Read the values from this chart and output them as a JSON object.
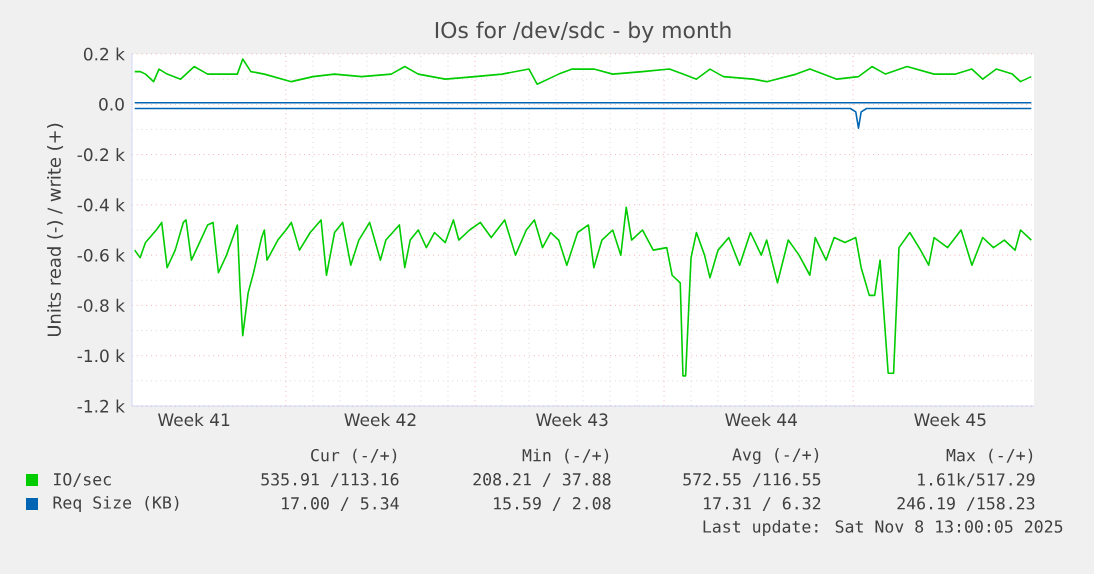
{
  "chart_data": {
    "type": "line",
    "title": "IOs for /dev/sdc - by month",
    "ylabel": "Units read (-) / write (+)",
    "xlim": [
      "2025-10-07T07:12",
      "2025-11-09T16:48"
    ],
    "ylim": [
      -1200,
      200
    ],
    "xticks": [
      {
        "value": "2025-10-09T14:24",
        "label": "Week 41"
      },
      {
        "value": "2025-10-13",
        "label": null
      },
      {
        "value": "2025-10-16T12:00",
        "label": "Week 42"
      },
      {
        "value": "2025-10-20",
        "label": null
      },
      {
        "value": "2025-10-23T14:24",
        "label": "Week 43"
      },
      {
        "value": "2025-10-27",
        "label": null
      },
      {
        "value": "2025-10-30T14:24",
        "label": "Week 44"
      },
      {
        "value": "2025-11-03",
        "label": null
      },
      {
        "value": "2025-11-06T14:24",
        "label": "Week 45"
      }
    ],
    "yticks": [
      {
        "value": 200,
        "label": "0.2 k"
      },
      {
        "value": 0,
        "label": "0.0"
      },
      {
        "value": -200,
        "label": "-0.2 k"
      },
      {
        "value": -400,
        "label": "-0.4 k"
      },
      {
        "value": -600,
        "label": "-0.6 k"
      },
      {
        "value": -800,
        "label": "-0.8 k"
      },
      {
        "value": -1000,
        "label": "-1.0 k"
      },
      {
        "value": -1200,
        "label": "-1.2 k"
      }
    ],
    "grid": true,
    "legend": "bottom",
    "series": [
      {
        "name": "IO/sec",
        "color": "#00cc00",
        "x": [
          "2025-10-07T09:36",
          "2025-10-07T14:24",
          "2025-10-07T19:12",
          "2025-10-08T02:24",
          "2025-10-08T07:12",
          "2025-10-08T14:24",
          "2025-10-09T02:24",
          "2025-10-09T14:24",
          "2025-10-10T02:24",
          "2025-10-10T14:24",
          "2025-10-11T04:48",
          "2025-10-11T09:36",
          "2025-10-11T16:48",
          "2025-10-12T04:48",
          "2025-10-13T04:48",
          "2025-10-14T00:00",
          "2025-10-14T19:12",
          "2025-10-15T19:12",
          "2025-10-16T21:36",
          "2025-10-17T09:36",
          "2025-10-17T21:36",
          "2025-10-18T21:36",
          "2025-10-20T00:00",
          "2025-10-21T00:00",
          "2025-10-22T00:00",
          "2025-10-22T07:12",
          "2025-10-23T02:24",
          "2025-10-23T14:24",
          "2025-10-24T09:36",
          "2025-10-25T02:24",
          "2025-10-26T04:48",
          "2025-10-27T04:48",
          "2025-10-27T16:48",
          "2025-10-28T04:48",
          "2025-10-28T16:48",
          "2025-10-29T04:48",
          "2025-10-30T07:12",
          "2025-10-30T19:12",
          "2025-10-31T21:36",
          "2025-11-01T09:36",
          "2025-11-02T09:36",
          "2025-11-03T04:48",
          "2025-11-03T16:48",
          "2025-11-04T04:48",
          "2025-11-05T00:00",
          "2025-11-06T00:00",
          "2025-11-06T19:12",
          "2025-11-07T09:36",
          "2025-11-07T19:12",
          "2025-11-08T07:12",
          "2025-11-08T21:36",
          "2025-11-09T04:48",
          "2025-11-09T14:24"
        ],
        "values": [
          130,
          130,
          120,
          90,
          140,
          120,
          100,
          150,
          120,
          120,
          120,
          180,
          130,
          120,
          90,
          110,
          120,
          110,
          120,
          150,
          120,
          100,
          110,
          120,
          140,
          80,
          120,
          140,
          140,
          120,
          130,
          140,
          120,
          100,
          140,
          110,
          100,
          90,
          120,
          140,
          100,
          110,
          150,
          120,
          150,
          120,
          120,
          140,
          100,
          140,
          120,
          90,
          110
        ]
      },
      {
        "color": "#00cc00",
        "x": [
          "2025-10-07T09:36",
          "2025-10-07T14:24",
          "2025-10-07T19:12",
          "2025-10-08T04:48",
          "2025-10-08T09:36",
          "2025-10-08T14:24",
          "2025-10-08T21:36",
          "2025-10-09T04:48",
          "2025-10-09T07:12",
          "2025-10-09T12:00",
          "2025-10-09T19:12",
          "2025-10-10T02:24",
          "2025-10-10T07:12",
          "2025-10-10T12:00",
          "2025-10-10T19:12",
          "2025-10-11T04:48",
          "2025-10-11T07:12",
          "2025-10-11T09:36",
          "2025-10-11T14:24",
          "2025-10-11T19:12",
          "2025-10-12T02:24",
          "2025-10-12T04:48",
          "2025-10-12T07:12",
          "2025-10-12T16:48",
          "2025-10-13T00:00",
          "2025-10-13T04:48",
          "2025-10-13T12:00",
          "2025-10-13T21:36",
          "2025-10-14T07:12",
          "2025-10-14T12:00",
          "2025-10-14T19:12",
          "2025-10-15T02:24",
          "2025-10-15T09:36",
          "2025-10-15T16:48",
          "2025-10-16T02:24",
          "2025-10-16T12:00",
          "2025-10-16T16:48",
          "2025-10-17T04:48",
          "2025-10-17T09:36",
          "2025-10-17T14:24",
          "2025-10-17T21:36",
          "2025-10-18T04:48",
          "2025-10-18T12:00",
          "2025-10-18T21:36",
          "2025-10-19T04:48",
          "2025-10-19T09:36",
          "2025-10-19T19:12",
          "2025-10-20T04:48",
          "2025-10-20T14:24",
          "2025-10-21T02:24",
          "2025-10-21T12:00",
          "2025-10-21T21:36",
          "2025-10-22T04:48",
          "2025-10-22T12:00",
          "2025-10-22T19:12",
          "2025-10-23T02:24",
          "2025-10-23T09:36",
          "2025-10-23T19:12",
          "2025-10-24T04:48",
          "2025-10-24T09:36",
          "2025-10-24T16:48",
          "2025-10-25T02:24",
          "2025-10-25T09:36",
          "2025-10-25T14:24",
          "2025-10-25T19:12",
          "2025-10-26T04:48",
          "2025-10-26T14:24",
          "2025-10-27T02:24",
          "2025-10-27T07:12",
          "2025-10-27T14:24",
          "2025-10-27T16:48",
          "2025-10-27T19:12",
          "2025-10-28T00:00",
          "2025-10-28T04:48",
          "2025-10-28T12:00",
          "2025-10-28T16:48",
          "2025-10-29T00:00",
          "2025-10-29T09:36",
          "2025-10-29T19:12",
          "2025-10-30T04:48",
          "2025-10-30T14:24",
          "2025-10-30T19:12",
          "2025-10-31T04:48",
          "2025-10-31T14:24",
          "2025-11-01T00:00",
          "2025-11-01T09:36",
          "2025-11-01T14:24",
          "2025-11-02T00:00",
          "2025-11-02T07:12",
          "2025-11-02T16:48",
          "2025-11-03T02:24",
          "2025-11-03T07:12",
          "2025-11-03T14:24",
          "2025-11-03T19:12",
          "2025-11-04T00:00",
          "2025-11-04T07:12",
          "2025-11-04T12:00",
          "2025-11-04T16:48",
          "2025-11-05T02:24",
          "2025-11-05T12:00",
          "2025-11-05T19:12",
          "2025-11-06T00:00",
          "2025-11-06T12:00",
          "2025-11-07T00:00",
          "2025-11-07T09:36",
          "2025-11-07T19:12",
          "2025-11-08T04:48",
          "2025-11-08T14:24",
          "2025-11-09T00:00",
          "2025-11-09T04:48",
          "2025-11-09T14:24"
        ],
        "values": [
          -580,
          -610,
          -550,
          -500,
          -470,
          -650,
          -580,
          -470,
          -460,
          -620,
          -550,
          -480,
          -470,
          -670,
          -600,
          -480,
          -730,
          -920,
          -750,
          -670,
          -530,
          -500,
          -620,
          -540,
          -500,
          -470,
          -580,
          -510,
          -460,
          -680,
          -510,
          -470,
          -640,
          -540,
          -470,
          -620,
          -540,
          -480,
          -650,
          -540,
          -500,
          -570,
          -510,
          -550,
          -460,
          -540,
          -500,
          -470,
          -530,
          -460,
          -600,
          -500,
          -460,
          -570,
          -510,
          -540,
          -640,
          -510,
          -480,
          -650,
          -540,
          -500,
          -600,
          -410,
          -540,
          -500,
          -580,
          -570,
          -680,
          -710,
          -1080,
          -1080,
          -610,
          -510,
          -600,
          -690,
          -580,
          -530,
          -640,
          -510,
          -600,
          -540,
          -710,
          -540,
          -600,
          -680,
          -530,
          -620,
          -530,
          -550,
          -530,
          -650,
          -760,
          -760,
          -620,
          -1070,
          -1070,
          -570,
          -510,
          -580,
          -640,
          -530,
          -570,
          -500,
          -640,
          -530,
          -570,
          -540,
          -580,
          -500,
          -540
        ]
      },
      {
        "name": "Req Size (KB)",
        "color": "#0066b3",
        "x": [
          "2025-10-07T09:36",
          "2025-10-17T07:12",
          "2025-10-27T07:12",
          "2025-11-09T14:24"
        ],
        "values": [
          6,
          6,
          6,
          6
        ]
      },
      {
        "color": "#0066b3",
        "x": [
          "2025-10-07T09:36",
          "2025-11-02T21:36",
          "2025-11-03T02:24",
          "2025-11-03T04:48",
          "2025-11-03T07:12",
          "2025-11-03T12:00",
          "2025-11-09T14:24"
        ],
        "values": [
          -17,
          -17,
          -30,
          -95,
          -30,
          -17,
          -17
        ]
      }
    ],
    "annotations": [
      "Cur (-/+)",
      "Min (-/+)",
      "Avg (-/+)",
      "Max (-/+)",
      "535.91 /113.16",
      "208.21 / 37.88",
      "572.55 /116.55",
      "1.61k/517.29",
      "17.00 / 5.34",
      "15.59 / 2.08",
      "17.31 / 6.32",
      "246.19 /158.23",
      "Last update: Sat Nov 8 13:00:05 2025"
    ]
  }
}
